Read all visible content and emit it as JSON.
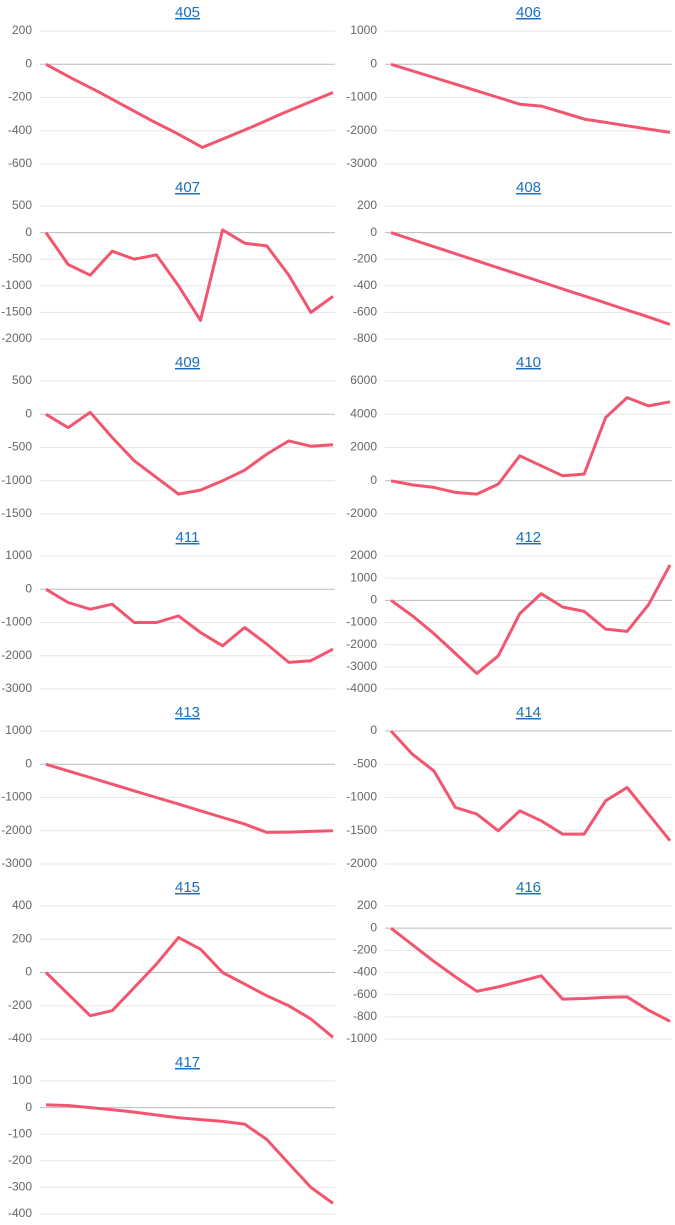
{
  "chart_data": [
    {
      "type": "line",
      "title": "405",
      "color": "#f2566f",
      "grid": true,
      "ylim": [
        -600,
        200
      ],
      "yticks": [
        -600,
        -400,
        -200,
        0,
        200
      ],
      "values": [
        0,
        -85,
        -165,
        -250,
        -335,
        -415,
        -500,
        -435,
        -370,
        -300,
        -235,
        -170
      ]
    },
    {
      "type": "line",
      "title": "406",
      "color": "#f2566f",
      "grid": true,
      "ylim": [
        -3000,
        1000
      ],
      "yticks": [
        -3000,
        -2000,
        -1000,
        0,
        1000
      ],
      "values": [
        0,
        -200,
        -400,
        -600,
        -800,
        -1000,
        -1200,
        -1260,
        -1450,
        -1650,
        -1750,
        -1850,
        -1950,
        -2050
      ]
    },
    {
      "type": "line",
      "title": "407",
      "color": "#f2566f",
      "grid": true,
      "ylim": [
        -2000,
        500
      ],
      "yticks": [
        -2000,
        -1500,
        -1000,
        -500,
        0,
        500
      ],
      "values": [
        0,
        -600,
        -800,
        -350,
        -500,
        -420,
        -1000,
        -1650,
        50,
        -200,
        -250,
        -800,
        -1500,
        -1200
      ]
    },
    {
      "type": "line",
      "title": "408",
      "color": "#f2566f",
      "grid": true,
      "ylim": [
        -800,
        200
      ],
      "yticks": [
        -800,
        -600,
        -400,
        -200,
        0,
        200
      ],
      "values": [
        0,
        -63,
        -125,
        -188,
        -250,
        -313,
        -375,
        -438,
        -500,
        -563,
        -625,
        -690
      ]
    },
    {
      "type": "line",
      "title": "409",
      "color": "#f2566f",
      "grid": true,
      "ylim": [
        -1500,
        500
      ],
      "yticks": [
        -1500,
        -1000,
        -500,
        0,
        500
      ],
      "values": [
        0,
        -200,
        30,
        -350,
        -700,
        -950,
        -1200,
        -1140,
        -1000,
        -840,
        -600,
        -400,
        -480,
        -460
      ]
    },
    {
      "type": "line",
      "title": "410",
      "color": "#f2566f",
      "grid": true,
      "ylim": [
        -2000,
        6000
      ],
      "yticks": [
        -2000,
        0,
        2000,
        4000,
        6000
      ],
      "values": [
        0,
        -250,
        -400,
        -700,
        -800,
        -200,
        1500,
        900,
        300,
        400,
        3800,
        5000,
        4500,
        4750
      ]
    },
    {
      "type": "line",
      "title": "411",
      "color": "#f2566f",
      "grid": true,
      "ylim": [
        -3000,
        1000
      ],
      "yticks": [
        -3000,
        -2000,
        -1000,
        0,
        1000
      ],
      "values": [
        0,
        -400,
        -600,
        -450,
        -1000,
        -1000,
        -800,
        -1300,
        -1700,
        -1150,
        -1650,
        -2200,
        -2150,
        -1800
      ]
    },
    {
      "type": "line",
      "title": "412",
      "color": "#f2566f",
      "grid": true,
      "ylim": [
        -4000,
        2000
      ],
      "yticks": [
        -4000,
        -3000,
        -2000,
        -1000,
        0,
        1000,
        2000
      ],
      "values": [
        0,
        -700,
        -1500,
        -2400,
        -3300,
        -2500,
        -600,
        300,
        -300,
        -500,
        -1300,
        -1400,
        -200,
        1600
      ]
    },
    {
      "type": "line",
      "title": "413",
      "color": "#f2566f",
      "grid": true,
      "ylim": [
        -3000,
        1000
      ],
      "yticks": [
        -3000,
        -2000,
        -1000,
        0,
        1000
      ],
      "values": [
        0,
        -200,
        -400,
        -600,
        -800,
        -1000,
        -1200,
        -1400,
        -1600,
        -1800,
        -2050,
        -2040,
        -2020,
        -2000
      ]
    },
    {
      "type": "line",
      "title": "414",
      "color": "#f2566f",
      "grid": true,
      "ylim": [
        -2000,
        0
      ],
      "yticks": [
        -2000,
        -1500,
        -1000,
        -500,
        0
      ],
      "values": [
        0,
        -350,
        -600,
        -1150,
        -1250,
        -1500,
        -1200,
        -1350,
        -1550,
        -1550,
        -1050,
        -850,
        -1250,
        -1650
      ]
    },
    {
      "type": "line",
      "title": "415",
      "color": "#f2566f",
      "grid": true,
      "ylim": [
        -400,
        400
      ],
      "yticks": [
        -400,
        -200,
        0,
        200,
        400
      ],
      "values": [
        0,
        -130,
        -260,
        -230,
        -90,
        50,
        210,
        140,
        0,
        -70,
        -140,
        -200,
        -280,
        -390
      ]
    },
    {
      "type": "line",
      "title": "416",
      "color": "#f2566f",
      "grid": true,
      "ylim": [
        -1000,
        200
      ],
      "yticks": [
        -1000,
        -800,
        -600,
        -400,
        -200,
        0,
        200
      ],
      "values": [
        0,
        -150,
        -300,
        -440,
        -570,
        -530,
        -480,
        -430,
        -640,
        -635,
        -625,
        -620,
        -740,
        -840
      ]
    },
    {
      "type": "line",
      "title": "417",
      "color": "#f2566f",
      "grid": true,
      "ylim": [
        -400,
        100
      ],
      "yticks": [
        -400,
        -300,
        -200,
        -100,
        0,
        100
      ],
      "values": [
        10,
        8,
        0,
        -8,
        -17,
        -28,
        -38,
        -45,
        -52,
        -62,
        -120,
        -210,
        -300,
        -360
      ]
    }
  ]
}
